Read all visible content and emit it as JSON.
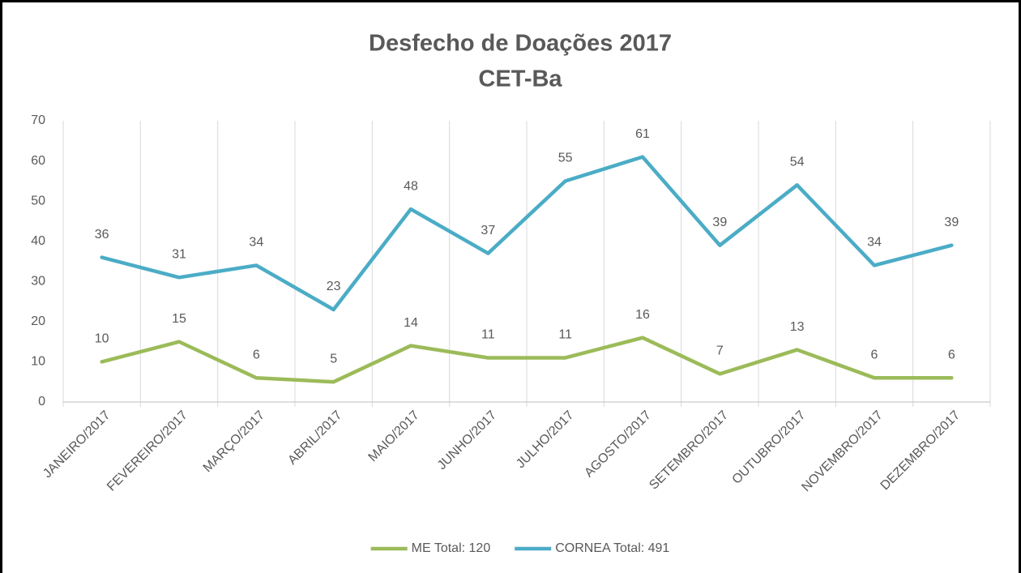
{
  "chart_data": {
    "type": "line",
    "title": "Desfecho de Doações 2017",
    "subtitle": "CET-Ba",
    "categories": [
      "JANEIRO/2017",
      "FEVEREIRO/2017",
      "MARÇO/2017",
      "ABRIL/2017",
      "MAIO/2017",
      "JUNHO/2017",
      "JULHO/2017",
      "AGOSTO/2017",
      "SETEMBRO/2017",
      "OUTUBRO/2017",
      "NOVEMBRO/2017",
      "DEZEMBRO/2017"
    ],
    "series": [
      {
        "name": "ME Total: 120",
        "color": "#9bbb59",
        "values": [
          10,
          15,
          6,
          5,
          14,
          11,
          11,
          16,
          7,
          13,
          6,
          6
        ]
      },
      {
        "name": "CORNEA Total: 491",
        "color": "#4bacc6",
        "values": [
          36,
          31,
          34,
          23,
          48,
          37,
          55,
          61,
          39,
          54,
          34,
          39
        ]
      }
    ],
    "ylim": [
      0,
      70
    ],
    "yticks": [
      0,
      10,
      20,
      30,
      40,
      50,
      60,
      70
    ],
    "grid": true,
    "legend": "bottom"
  }
}
